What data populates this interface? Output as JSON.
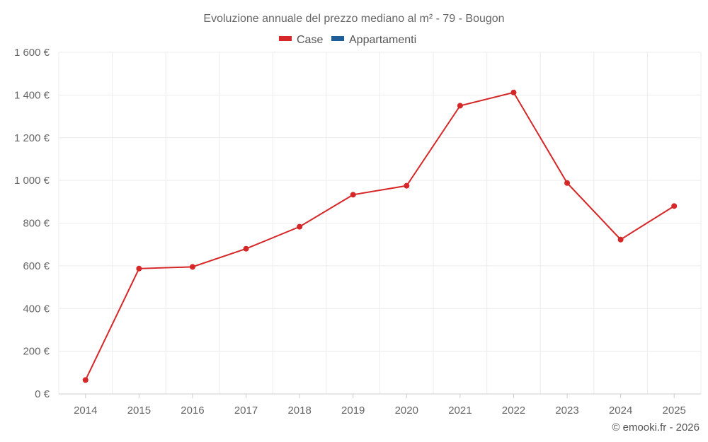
{
  "chart_data": {
    "type": "line",
    "title": "Evoluzione annuale del prezzo mediano al m² - 79 - Bougon",
    "legend": [
      {
        "name": "Case",
        "color": "#d62728"
      },
      {
        "name": "Appartamenti",
        "color": "#1f5f99"
      }
    ],
    "categories": [
      "2014",
      "2015",
      "2016",
      "2017",
      "2018",
      "2019",
      "2020",
      "2021",
      "2022",
      "2023",
      "2024",
      "2025"
    ],
    "series": [
      {
        "name": "Case",
        "color": "#d62728",
        "values": [
          65,
          587,
          595,
          680,
          783,
          933,
          975,
          1350,
          1412,
          988,
          723,
          880
        ]
      }
    ],
    "y_ticks": [
      "0 €",
      "200 €",
      "400 €",
      "600 €",
      "800 €",
      "1 000 €",
      "1 200 €",
      "1 400 €",
      "1 600 €"
    ],
    "ylim": [
      0,
      1600
    ],
    "grid": true,
    "legend_position": "top-center",
    "credit": "© emooki.fr - 2026"
  }
}
